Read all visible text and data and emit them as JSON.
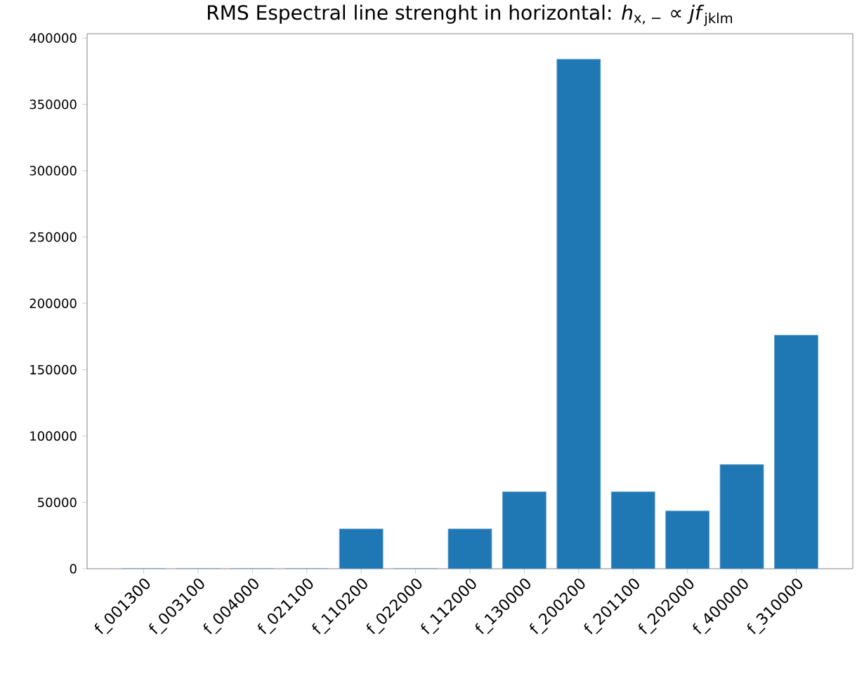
{
  "chart_data": {
    "type": "bar",
    "title": "RMS Espectral line strenght in horizontal: *h*$_{x, −}$ ∝ *jf*$_{jklm}$",
    "categories": [
      "f_001300",
      "f_003100",
      "f_004000",
      "f_021100",
      "f_110200",
      "f_022000",
      "f_112000",
      "f_130000",
      "f_200200",
      "f_201100",
      "f_202000",
      "f_400000",
      "f_310000"
    ],
    "values": [
      0,
      0,
      0,
      0,
      30000,
      0,
      30000,
      58000,
      384000,
      58000,
      43500,
      78500,
      176000
    ],
    "color": "#1f77b4",
    "ylim": [
      0,
      403200
    ],
    "yticks": [
      0,
      50000,
      100000,
      150000,
      200000,
      250000,
      300000,
      350000,
      400000
    ],
    "grid": false
  }
}
